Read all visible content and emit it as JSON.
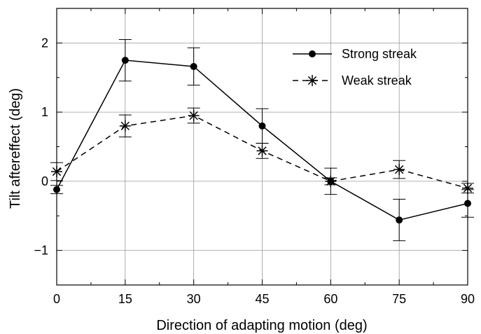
{
  "chart_data": {
    "type": "line",
    "xlabel": "Direction of adapting motion (deg)",
    "ylabel": "Tilt aftereffect (deg)",
    "xlim": [
      0,
      90
    ],
    "ylim": [
      -1.5,
      2.5
    ],
    "xticks": [
      0,
      15,
      30,
      45,
      60,
      75,
      90
    ],
    "yticks": [
      -1,
      0,
      1,
      2
    ],
    "xtick_labels": [
      "0",
      "15",
      "30",
      "45",
      "60",
      "75",
      "90"
    ],
    "ytick_labels": [
      "−1",
      "0",
      "1",
      "2"
    ],
    "grid": true,
    "legend_position": "top-right",
    "x": [
      0,
      15,
      30,
      45,
      60,
      75,
      90
    ],
    "series": [
      {
        "name": "Strong streak",
        "marker": "filled-circle",
        "line_style": "solid",
        "color": "#000000",
        "values": [
          -0.12,
          1.75,
          1.66,
          0.8,
          0.0,
          -0.56,
          -0.32
        ],
        "error": [
          0.06,
          0.3,
          0.27,
          0.25,
          0.19,
          0.3,
          0.2
        ]
      },
      {
        "name": "Weak streak",
        "marker": "asterisk",
        "line_style": "dashed",
        "color": "#000000",
        "values": [
          0.14,
          0.8,
          0.95,
          0.44,
          0.0,
          0.17,
          -0.1
        ],
        "error": [
          0.13,
          0.16,
          0.11,
          0.11,
          0.05,
          0.13,
          0.07
        ]
      }
    ]
  }
}
